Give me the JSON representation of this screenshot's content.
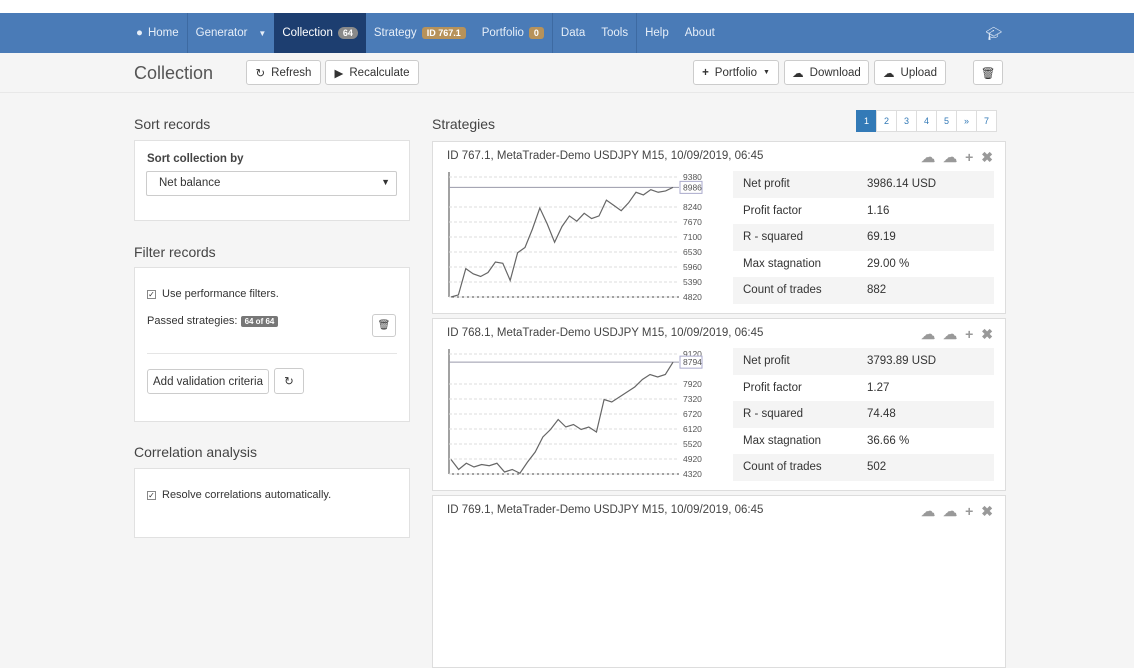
{
  "nav": {
    "home": "Home",
    "generator": "Generator",
    "collection": "Collection",
    "collection_count": "64",
    "strategy": "Strategy",
    "strategy_id": "ID 767.1",
    "portfolio": "Portfolio",
    "portfolio_count": "0",
    "data": "Data",
    "tools": "Tools",
    "help": "Help",
    "about": "About"
  },
  "toolbar": {
    "title": "Collection",
    "refresh": "Refresh",
    "recalculate": "Recalculate",
    "portfolio": "Portfolio",
    "download": "Download",
    "upload": "Upload"
  },
  "sort": {
    "heading": "Sort records",
    "label": "Sort collection by",
    "value": "Net balance"
  },
  "filter": {
    "heading": "Filter records",
    "use_filters": "Use performance filters.",
    "passed_label": "Passed strategies:",
    "passed_badge": "64 of 64",
    "add_criteria": "Add validation criteria"
  },
  "correlation": {
    "heading": "Correlation analysis",
    "resolve": "Resolve correlations automatically."
  },
  "strategies": {
    "heading": "Strategies",
    "pages": [
      "1",
      "2",
      "3",
      "4",
      "5",
      "»",
      "7"
    ],
    "active_page": "1",
    "cards": [
      {
        "title": "ID 767.1, MetaTrader-Demo USDJPY M15, 10/09/2019, 06:45",
        "axis": [
          "9380",
          "8986",
          "8240",
          "7670",
          "7100",
          "6530",
          "5960",
          "5390",
          "4820"
        ],
        "last": "8986",
        "ymin": 4820,
        "ymax": 9380,
        "equity": [
          4820,
          4900,
          5900,
          5700,
          5600,
          5750,
          6150,
          6100,
          5450,
          6500,
          6700,
          7400,
          8200,
          7600,
          6900,
          7500,
          7900,
          7700,
          8000,
          7800,
          7900,
          8500,
          8300,
          8100,
          8400,
          8800,
          8700,
          8900,
          8800,
          8850,
          8986
        ],
        "stats": [
          [
            "Net profit",
            "3986.14 USD"
          ],
          [
            "Profit factor",
            "1.16"
          ],
          [
            "R - squared",
            "69.19"
          ],
          [
            "Max stagnation",
            "29.00 %"
          ],
          [
            "Count of trades",
            "882"
          ]
        ]
      },
      {
        "title": "ID 768.1, MetaTrader-Demo USDJPY M15, 10/09/2019, 06:45",
        "axis": [
          "9120",
          "8794",
          "7920",
          "7320",
          "6720",
          "6120",
          "5520",
          "4920",
          "4320"
        ],
        "last": "8794",
        "ymin": 4320,
        "ymax": 9120,
        "equity": [
          4900,
          4500,
          4750,
          4600,
          4700,
          4650,
          4750,
          4400,
          4500,
          4350,
          4800,
          5200,
          5800,
          6100,
          6500,
          6200,
          6300,
          6100,
          6200,
          6000,
          7300,
          7200,
          7400,
          7600,
          7800,
          8100,
          8300,
          8200,
          8300,
          8794
        ],
        "stats": [
          [
            "Net profit",
            "3793.89 USD"
          ],
          [
            "Profit factor",
            "1.27"
          ],
          [
            "R - squared",
            "74.48"
          ],
          [
            "Max stagnation",
            "36.66 %"
          ],
          [
            "Count of trades",
            "502"
          ]
        ]
      },
      {
        "title": "ID 769.1, MetaTrader-Demo USDJPY M15, 10/09/2019, 06:45"
      }
    ]
  }
}
